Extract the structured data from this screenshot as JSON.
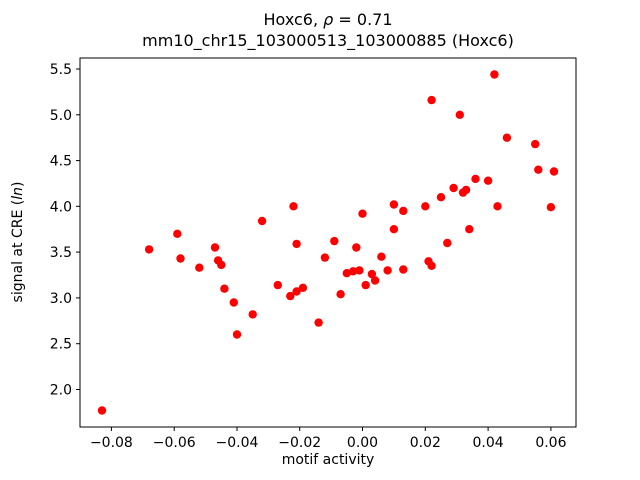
{
  "chart_data": {
    "type": "scatter",
    "title": "Hoxc6, ρ = 0.71",
    "title_parts": {
      "pre": "Hoxc6, ",
      "rho": "ρ",
      "post": " = 0.71"
    },
    "subtitle": "mm10_chr15_103000513_103000885 (Hoxc6)",
    "xlabel": "motif activity",
    "ylabel": "signal at CRE (ln)",
    "ylabel_parts": {
      "pre": "signal at CRE (",
      "it": "ln",
      "post": ")"
    },
    "legend": "none",
    "grid": false,
    "xlim": [
      -0.09,
      0.068
    ],
    "ylim": [
      1.59,
      5.62
    ],
    "xtick_values": [
      -0.08,
      -0.06,
      -0.04,
      -0.02,
      0.0,
      0.02,
      0.04,
      0.06
    ],
    "xtick_labels": [
      "−0.08",
      "−0.06",
      "−0.04",
      "−0.02",
      "0.00",
      "0.02",
      "0.04",
      "0.06"
    ],
    "ytick_values": [
      2.0,
      2.5,
      3.0,
      3.5,
      4.0,
      4.5,
      5.0,
      5.5
    ],
    "ytick_labels": [
      "2.0",
      "2.5",
      "3.0",
      "3.5",
      "4.0",
      "4.5",
      "5.0",
      "5.5"
    ],
    "point_color": "#ff0000",
    "marker": "circle",
    "points": [
      [
        -0.083,
        1.77
      ],
      [
        -0.068,
        3.53
      ],
      [
        -0.059,
        3.7
      ],
      [
        -0.058,
        3.43
      ],
      [
        -0.052,
        3.33
      ],
      [
        -0.047,
        3.55
      ],
      [
        -0.046,
        3.41
      ],
      [
        -0.045,
        3.36
      ],
      [
        -0.044,
        3.1
      ],
      [
        -0.041,
        2.95
      ],
      [
        -0.04,
        2.6
      ],
      [
        -0.035,
        2.82
      ],
      [
        -0.032,
        3.84
      ],
      [
        -0.027,
        3.14
      ],
      [
        -0.022,
        4.0
      ],
      [
        -0.021,
        3.59
      ],
      [
        -0.023,
        3.02
      ],
      [
        -0.021,
        3.07
      ],
      [
        -0.019,
        3.11
      ],
      [
        -0.014,
        2.73
      ],
      [
        -0.012,
        3.44
      ],
      [
        -0.009,
        3.62
      ],
      [
        -0.007,
        3.04
      ],
      [
        -0.005,
        3.27
      ],
      [
        -0.003,
        3.29
      ],
      [
        -0.002,
        3.55
      ],
      [
        -0.001,
        3.3
      ],
      [
        0.0,
        3.92
      ],
      [
        0.001,
        3.14
      ],
      [
        0.003,
        3.26
      ],
      [
        0.004,
        3.19
      ],
      [
        0.006,
        3.45
      ],
      [
        0.008,
        3.3
      ],
      [
        0.01,
        4.02
      ],
      [
        0.01,
        3.75
      ],
      [
        0.013,
        3.31
      ],
      [
        0.013,
        3.95
      ],
      [
        0.02,
        4.0
      ],
      [
        0.021,
        3.4
      ],
      [
        0.022,
        3.35
      ],
      [
        0.022,
        5.16
      ],
      [
        0.025,
        4.1
      ],
      [
        0.027,
        3.6
      ],
      [
        0.029,
        4.2
      ],
      [
        0.031,
        5.0
      ],
      [
        0.032,
        4.15
      ],
      [
        0.033,
        4.18
      ],
      [
        0.034,
        3.75
      ],
      [
        0.036,
        4.3
      ],
      [
        0.04,
        4.28
      ],
      [
        0.042,
        5.44
      ],
      [
        0.043,
        4.0
      ],
      [
        0.046,
        4.75
      ],
      [
        0.055,
        4.68
      ],
      [
        0.056,
        4.4
      ],
      [
        0.061,
        4.38
      ],
      [
        0.06,
        3.99
      ]
    ]
  }
}
